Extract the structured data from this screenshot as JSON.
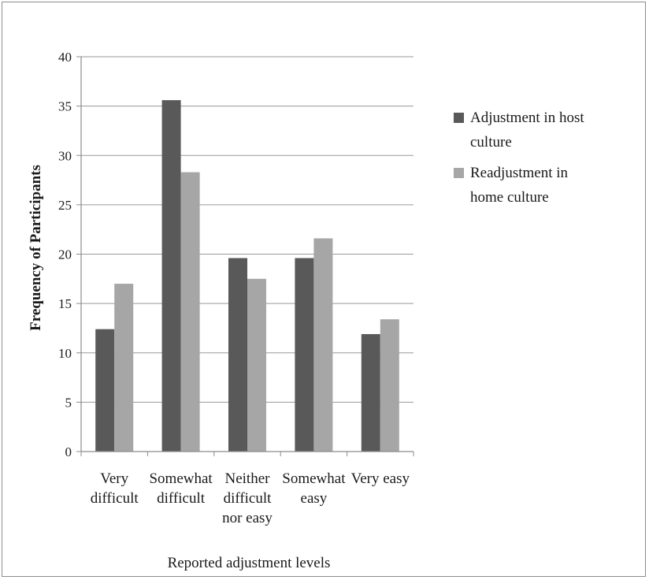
{
  "chart_data": {
    "type": "bar",
    "xlabel": "Reported adjustment levels",
    "ylabel": "Frequency of Participants",
    "ylim": [
      0,
      40
    ],
    "yticks": [
      0,
      5,
      10,
      15,
      20,
      25,
      30,
      35,
      40
    ],
    "grid": true,
    "legend_position": "right",
    "categories": [
      [
        "Very",
        "difficult"
      ],
      [
        "Somewhat",
        "difficult"
      ],
      [
        "Neither",
        "difficult",
        "nor easy"
      ],
      [
        "Somewhat",
        "easy"
      ],
      [
        "Very easy"
      ]
    ],
    "series": [
      {
        "name": [
          "Adjustment in host",
          "culture"
        ],
        "color": "#595959",
        "values": [
          12.4,
          35.6,
          19.6,
          19.6,
          11.9
        ]
      },
      {
        "name": [
          "Readjustment in",
          "home culture"
        ],
        "color": "#a6a6a6",
        "values": [
          17.0,
          28.3,
          17.5,
          21.6,
          13.4
        ]
      }
    ]
  }
}
